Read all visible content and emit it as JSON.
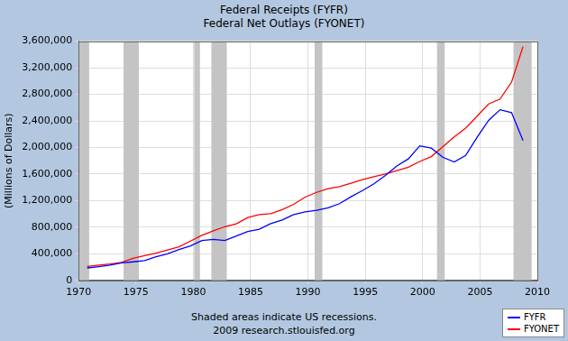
{
  "chart_data": {
    "type": "line",
    "title": "Federal Receipts (FYFR)",
    "subtitle": "Federal Net Outlays (FYONET)",
    "y_label": "(Millions of Dollars)",
    "annotations": [
      "Shaded areas indicate US recessions.",
      "2009 research.stlouisfed.org"
    ],
    "x": [
      1970.75,
      1971.75,
      1972.75,
      1973.75,
      1974.75,
      1975.75,
      1976.75,
      1977.75,
      1978.75,
      1979.75,
      1980.75,
      1981.75,
      1982.75,
      1983.75,
      1984.75,
      1985.75,
      1986.75,
      1987.75,
      1988.75,
      1989.75,
      1990.75,
      1991.75,
      1992.75,
      1993.75,
      1994.75,
      1995.75,
      1996.75,
      1997.75,
      1998.75,
      1999.75,
      2000.75,
      2001.75,
      2002.75,
      2003.75,
      2004.75,
      2005.75,
      2006.75,
      2007.75,
      2008.75
    ],
    "series": [
      {
        "name": "FYFR",
        "color": "#0000ff",
        "values": [
          187139,
          207309,
          230799,
          263224,
          279090,
          298060,
          355559,
          399561,
          463302,
          517112,
          599272,
          617766,
          600562,
          666438,
          734037,
          769155,
          854288,
          909238,
          991105,
          1031958,
          1054988,
          1091208,
          1154335,
          1258566,
          1351790,
          1453053,
          1579232,
          1721728,
          1827452,
          2025191,
          1991082,
          1853136,
          1782314,
          1880114,
          2153611,
          2406869,
          2567985,
          2523991,
          2104989
        ]
      },
      {
        "name": "FYONET",
        "color": "#ff0000",
        "values": [
          210172,
          230681,
          245707,
          269359,
          332332,
          371792,
          409218,
          458746,
          504028,
          590941,
          678241,
          745743,
          808364,
          851805,
          946344,
          990382,
          1004017,
          1064416,
          1143744,
          1252994,
          1324226,
          1381529,
          1409386,
          1461753,
          1515742,
          1560484,
          1601116,
          1652458,
          1701842,
          1788950,
          1862846,
          2010894,
          2159899,
          2292841,
          2471957,
          2655050,
          2728686,
          2982544,
          3517677
        ]
      }
    ],
    "recessions": [
      [
        1970,
        1970.92
      ],
      [
        1973.92,
        1975.25
      ],
      [
        1980.08,
        1980.58
      ],
      [
        1981.58,
        1982.92
      ],
      [
        1990.58,
        1991.25
      ],
      [
        2001.25,
        2001.92
      ],
      [
        2007.92,
        2009.5
      ]
    ],
    "xlim": [
      1970,
      2010
    ],
    "xticks": [
      1970,
      1975,
      1980,
      1985,
      1990,
      1995,
      2000,
      2005,
      2010
    ],
    "ylim": [
      0,
      3600000
    ],
    "yticks": [
      0,
      {
        "value": 400000,
        "label": "400,000"
      },
      {
        "value": 800000,
        "label": "800,000"
      },
      {
        "value": 1200000,
        "label": "1,200,000"
      },
      {
        "value": 1600000,
        "label": "1,600,000"
      },
      {
        "value": 2000000,
        "label": "2,000,000"
      },
      {
        "value": 2400000,
        "label": "2,400,000"
      },
      {
        "value": 2800000,
        "label": "2,800,000"
      },
      {
        "value": 3200000,
        "label": "3,200,000"
      },
      {
        "value": 3600000,
        "label": "3,600,000"
      }
    ],
    "grid": true,
    "legend": "lower right"
  }
}
